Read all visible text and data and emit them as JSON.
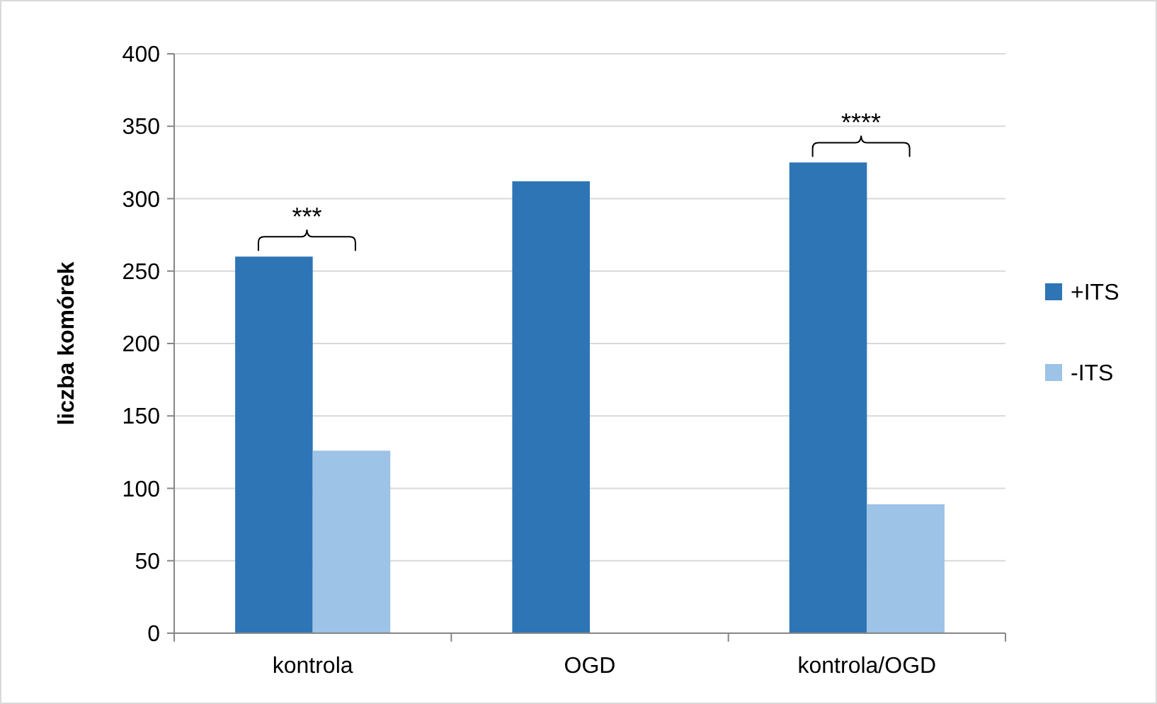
{
  "chart_data": {
    "type": "bar",
    "ylabel": "liczba komórek",
    "categories": [
      "kontrola",
      "OGD",
      "kontrola/OGD"
    ],
    "series": [
      {
        "name": "+ITS",
        "color": "#2e75b6",
        "values": [
          260,
          312,
          325
        ]
      },
      {
        "name": "-ITS",
        "color": "#9dc3e6",
        "values": [
          126,
          null,
          89
        ]
      }
    ],
    "ylim": [
      0,
      400
    ],
    "yticks": [
      0,
      50,
      100,
      150,
      200,
      250,
      300,
      350,
      400
    ],
    "grid": "y",
    "legend": "right",
    "annotations": [
      "***",
      "****"
    ]
  }
}
